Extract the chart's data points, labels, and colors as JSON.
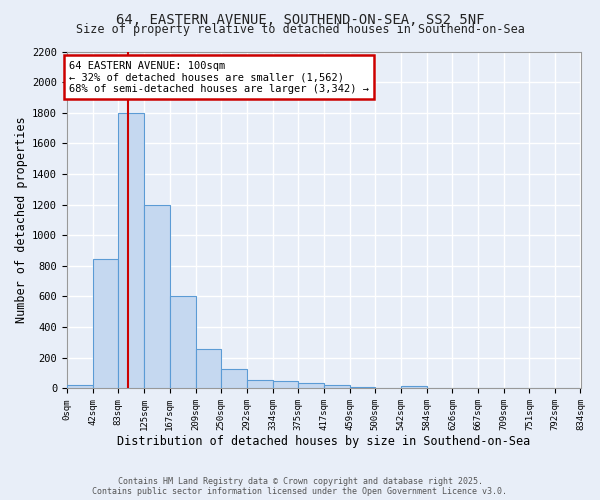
{
  "title": "64, EASTERN AVENUE, SOUTHEND-ON-SEA, SS2 5NF",
  "subtitle": "Size of property relative to detached houses in Southend-on-Sea",
  "xlabel": "Distribution of detached houses by size in Southend-on-Sea",
  "ylabel": "Number of detached properties",
  "bin_edges": [
    0,
    42,
    83,
    125,
    167,
    209,
    250,
    292,
    334,
    375,
    417,
    459,
    500,
    542,
    584,
    626,
    667,
    709,
    751,
    792,
    834
  ],
  "bar_heights": [
    25,
    845,
    1800,
    1200,
    600,
    255,
    125,
    55,
    50,
    35,
    22,
    12,
    0,
    15,
    0,
    0,
    0,
    0,
    0,
    0
  ],
  "bar_color": "#c5d8f0",
  "bar_edgecolor": "#5b9bd5",
  "property_size": 100,
  "red_line_color": "#cc0000",
  "annotation_text": "64 EASTERN AVENUE: 100sqm\n← 32% of detached houses are smaller (1,562)\n68% of semi-detached houses are larger (3,342) →",
  "annotation_box_color": "#ffffff",
  "annotation_box_edgecolor": "#cc0000",
  "ylim": [
    0,
    2200
  ],
  "xlim": [
    0,
    834
  ],
  "background_color": "#e8eef8",
  "plot_bg_color": "#e8eef8",
  "grid_color": "#ffffff",
  "footer_line1": "Contains HM Land Registry data © Crown copyright and database right 2025.",
  "footer_line2": "Contains public sector information licensed under the Open Government Licence v3.0.",
  "tick_labels": [
    "0sqm",
    "42sqm",
    "83sqm",
    "125sqm",
    "167sqm",
    "209sqm",
    "250sqm",
    "292sqm",
    "334sqm",
    "375sqm",
    "417sqm",
    "459sqm",
    "500sqm",
    "542sqm",
    "584sqm",
    "626sqm",
    "667sqm",
    "709sqm",
    "751sqm",
    "792sqm",
    "834sqm"
  ],
  "yticks": [
    0,
    200,
    400,
    600,
    800,
    1000,
    1200,
    1400,
    1600,
    1800,
    2000,
    2200
  ]
}
